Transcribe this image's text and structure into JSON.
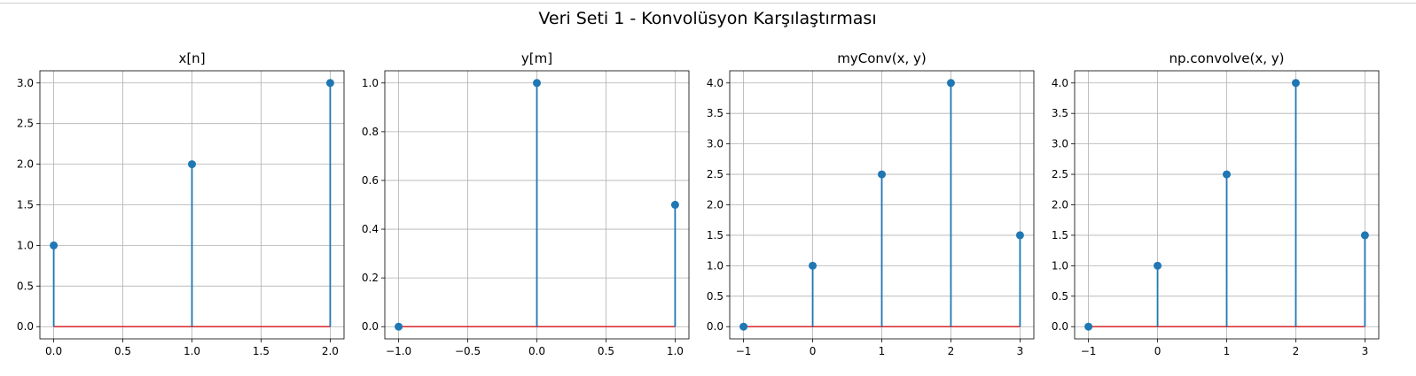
{
  "figure": {
    "suptitle": "Veri Seti 1 - Konvolüsyon Karşılaştırması"
  },
  "colors": {
    "stem": "#1f77b4",
    "baseline": "#d62728",
    "grid": "#b0b0b0",
    "axes": "#000000"
  },
  "chart_data": [
    {
      "type": "stem",
      "title": "x[n]",
      "xlabel": "",
      "ylabel": "",
      "xlim": [
        -0.1,
        2.1
      ],
      "ylim": [
        -0.15,
        3.15
      ],
      "xticks": [
        0.0,
        0.5,
        1.0,
        1.5,
        2.0
      ],
      "xtick_labels": [
        "0.0",
        "0.5",
        "1.0",
        "1.5",
        "2.0"
      ],
      "yticks": [
        0.0,
        0.5,
        1.0,
        1.5,
        2.0,
        2.5,
        3.0
      ],
      "ytick_labels": [
        "0.0",
        "0.5",
        "1.0",
        "1.5",
        "2.0",
        "2.5",
        "3.0"
      ],
      "grid": true,
      "points": [
        {
          "x": 0,
          "y": 1
        },
        {
          "x": 1,
          "y": 2
        },
        {
          "x": 2,
          "y": 3
        }
      ]
    },
    {
      "type": "stem",
      "title": "y[m]",
      "xlabel": "",
      "ylabel": "",
      "xlim": [
        -1.1,
        1.1
      ],
      "ylim": [
        -0.05,
        1.05
      ],
      "xticks": [
        -1.0,
        -0.5,
        0.0,
        0.5,
        1.0
      ],
      "xtick_labels": [
        "−1.0",
        "−0.5",
        "0.0",
        "0.5",
        "1.0"
      ],
      "yticks": [
        0.0,
        0.2,
        0.4,
        0.6,
        0.8,
        1.0
      ],
      "ytick_labels": [
        "0.0",
        "0.2",
        "0.4",
        "0.6",
        "0.8",
        "1.0"
      ],
      "grid": true,
      "points": [
        {
          "x": -1,
          "y": 0
        },
        {
          "x": 0,
          "y": 1
        },
        {
          "x": 1,
          "y": 0.5
        }
      ]
    },
    {
      "type": "stem",
      "title": "myConv(x, y)",
      "xlabel": "",
      "ylabel": "",
      "xlim": [
        -1.2,
        3.2
      ],
      "ylim": [
        -0.2,
        4.2
      ],
      "xticks": [
        -1,
        0,
        1,
        2,
        3
      ],
      "xtick_labels": [
        "−1",
        "0",
        "1",
        "2",
        "3"
      ],
      "yticks": [
        0.0,
        0.5,
        1.0,
        1.5,
        2.0,
        2.5,
        3.0,
        3.5,
        4.0
      ],
      "ytick_labels": [
        "0.0",
        "0.5",
        "1.0",
        "1.5",
        "2.0",
        "2.5",
        "3.0",
        "3.5",
        "4.0"
      ],
      "grid": true,
      "points": [
        {
          "x": -1,
          "y": 0
        },
        {
          "x": 0,
          "y": 1
        },
        {
          "x": 1,
          "y": 2.5
        },
        {
          "x": 2,
          "y": 4
        },
        {
          "x": 3,
          "y": 1.5
        }
      ]
    },
    {
      "type": "stem",
      "title": "np.convolve(x, y)",
      "xlabel": "",
      "ylabel": "",
      "xlim": [
        -1.2,
        3.2
      ],
      "ylim": [
        -0.2,
        4.2
      ],
      "xticks": [
        -1,
        0,
        1,
        2,
        3
      ],
      "xtick_labels": [
        "−1",
        "0",
        "1",
        "2",
        "3"
      ],
      "yticks": [
        0.0,
        0.5,
        1.0,
        1.5,
        2.0,
        2.5,
        3.0,
        3.5,
        4.0
      ],
      "ytick_labels": [
        "0.0",
        "0.5",
        "1.0",
        "1.5",
        "2.0",
        "2.5",
        "3.0",
        "3.5",
        "4.0"
      ],
      "grid": true,
      "points": [
        {
          "x": -1,
          "y": 0
        },
        {
          "x": 0,
          "y": 1
        },
        {
          "x": 1,
          "y": 2.5
        },
        {
          "x": 2,
          "y": 4
        },
        {
          "x": 3,
          "y": 1.5
        }
      ]
    }
  ]
}
